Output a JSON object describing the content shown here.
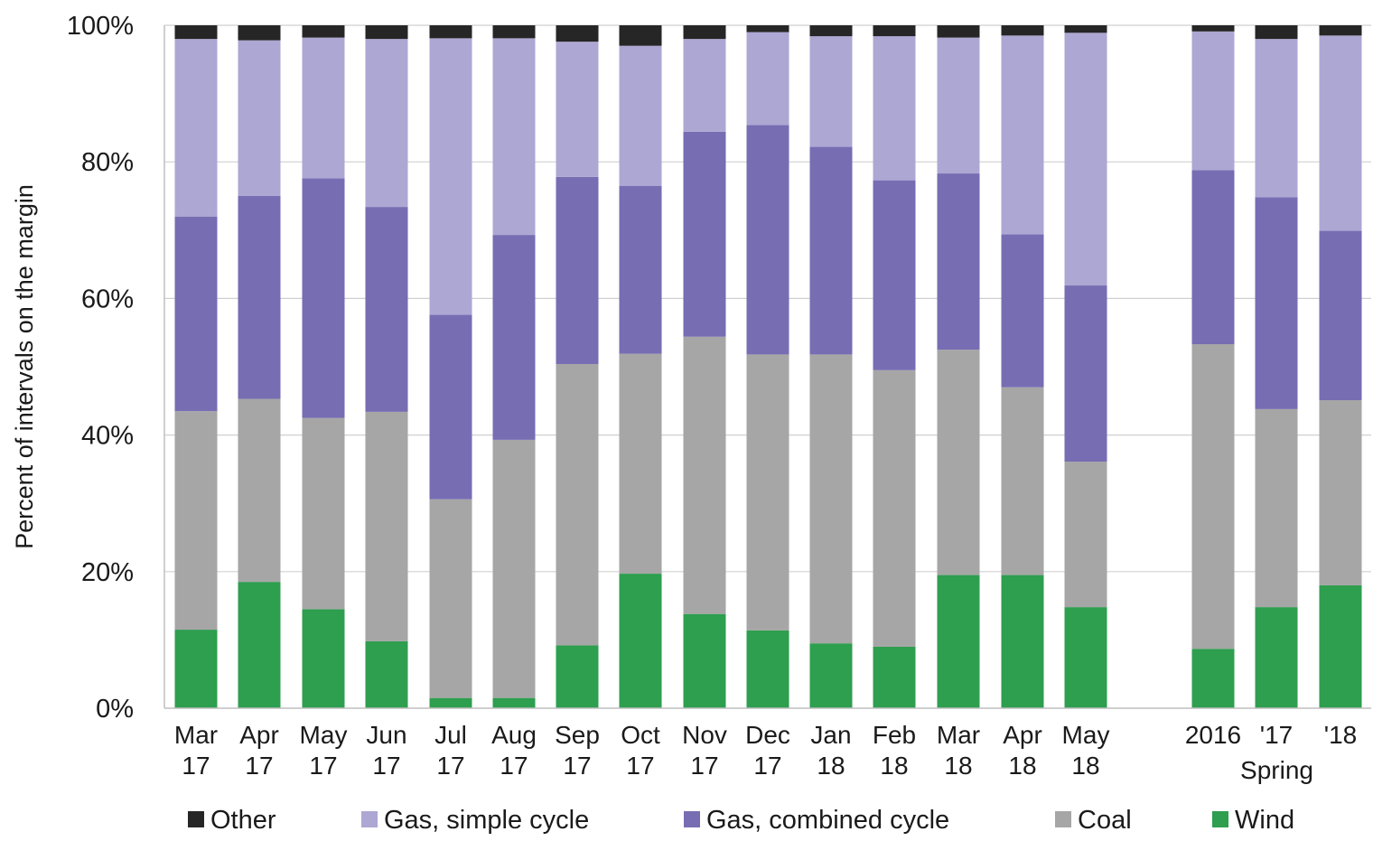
{
  "chart_data": {
    "type": "bar",
    "stacked": true,
    "title": "",
    "ylabel": "Percent of intervals on the margin",
    "xlabel": "",
    "ylim": [
      0,
      100
    ],
    "yticks": [
      "0%",
      "20%",
      "40%",
      "60%",
      "80%",
      "100%"
    ],
    "ytick_values": [
      0,
      20,
      40,
      60,
      80,
      100
    ],
    "grid": true,
    "legend_position": "bottom",
    "categories": [
      {
        "line1": "Mar",
        "line2": "17"
      },
      {
        "line1": "Apr",
        "line2": "17"
      },
      {
        "line1": "May",
        "line2": "17"
      },
      {
        "line1": "Jun",
        "line2": "17"
      },
      {
        "line1": "Jul",
        "line2": "17"
      },
      {
        "line1": "Aug",
        "line2": "17"
      },
      {
        "line1": "Sep",
        "line2": "17"
      },
      {
        "line1": "Oct",
        "line2": "17"
      },
      {
        "line1": "Nov",
        "line2": "17"
      },
      {
        "line1": "Dec",
        "line2": "17"
      },
      {
        "line1": "Jan",
        "line2": "18"
      },
      {
        "line1": "Feb",
        "line2": "18"
      },
      {
        "line1": "Mar",
        "line2": "18"
      },
      {
        "line1": "Apr",
        "line2": "18"
      },
      {
        "line1": "May",
        "line2": "18"
      },
      {
        "line1": "2016",
        "line2": ""
      },
      {
        "line1": "'17",
        "line2": ""
      },
      {
        "line1": "'18",
        "line2": ""
      }
    ],
    "group_labels": [
      {
        "label": "Spring",
        "categories": [
          15,
          16,
          17
        ]
      }
    ],
    "series": [
      {
        "name": "Wind",
        "color": "#2e9e4f",
        "values": [
          11.5,
          18.5,
          14.5,
          9.8,
          1.5,
          1.5,
          9.2,
          19.7,
          13.8,
          11.4,
          9.5,
          9.0,
          19.5,
          19.5,
          14.8,
          8.7,
          14.8,
          18.0
        ]
      },
      {
        "name": "Coal",
        "color": "#a6a6a6",
        "values": [
          32.0,
          26.8,
          28.0,
          33.6,
          29.1,
          37.8,
          41.2,
          32.2,
          40.6,
          40.4,
          42.3,
          40.5,
          33.0,
          27.5,
          21.3,
          44.6,
          29.0,
          27.1
        ]
      },
      {
        "name": "Gas, combined cycle",
        "color": "#766db3",
        "values": [
          28.5,
          29.7,
          35.1,
          30.0,
          27.0,
          30.0,
          27.4,
          24.6,
          30.0,
          33.6,
          30.4,
          27.8,
          25.8,
          22.4,
          25.8,
          25.5,
          31.0,
          24.8
        ]
      },
      {
        "name": "Gas, simple cycle",
        "color": "#ada7d3",
        "values": [
          26.0,
          22.8,
          20.6,
          24.6,
          40.5,
          28.8,
          19.8,
          20.5,
          13.6,
          13.6,
          16.2,
          21.1,
          19.9,
          29.1,
          37.0,
          20.3,
          23.2,
          28.6
        ]
      },
      {
        "name": "Other",
        "color": "#262626",
        "values": [
          2.0,
          2.2,
          1.8,
          2.0,
          1.9,
          1.9,
          2.4,
          3.0,
          2.0,
          1.0,
          1.6,
          1.6,
          1.8,
          1.5,
          1.1,
          0.9,
          2.0,
          1.5
        ]
      }
    ],
    "legend_order": [
      "Other",
      "Gas, simple cycle",
      "Gas, combined cycle",
      "Coal",
      "Wind"
    ]
  }
}
